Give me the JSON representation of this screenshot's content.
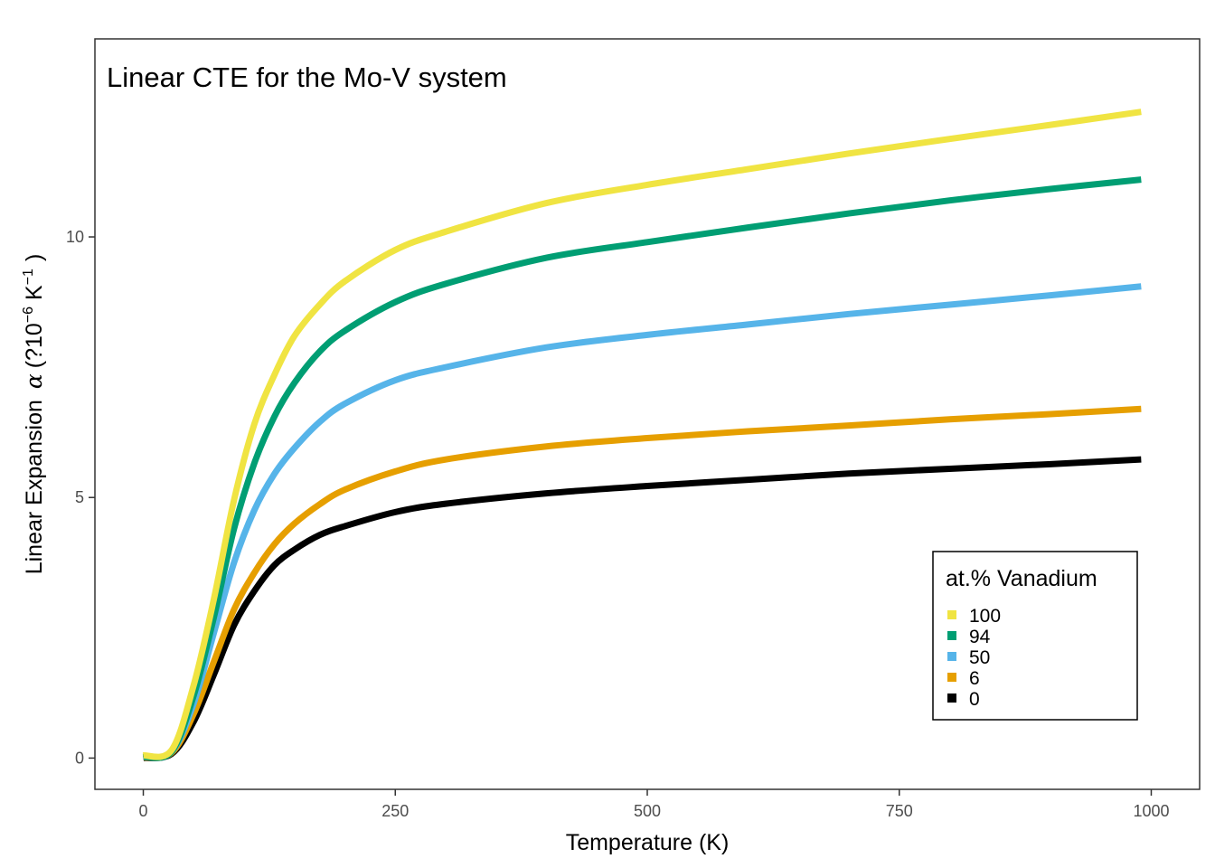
{
  "chart_data": {
    "type": "line",
    "title": "Linear CTE for the Mo-V system",
    "xlabel": "Temperature (K)",
    "ylabel_text": "Linear Expansion",
    "ylabel_symbol": "α",
    "ylabel_unit_open": "(?10",
    "ylabel_unit_exp1": "−6",
    "ylabel_unit_mid": " K",
    "ylabel_unit_exp2": "−1",
    "ylabel_unit_close": ")",
    "xlim": [
      -48,
      1048
    ],
    "ylim": [
      -0.6,
      13.8
    ],
    "xticks": [
      0,
      250,
      500,
      750,
      1000
    ],
    "xtick_labels": [
      "0",
      "250",
      "500",
      "750",
      "1000"
    ],
    "yticks": [
      0,
      5,
      10
    ],
    "ytick_labels": [
      "0",
      "5",
      "10"
    ],
    "grid": false,
    "legend": {
      "title": "at.% Vanadium",
      "placement": "bottom-right",
      "entries": [
        "100",
        "94",
        "50",
        "6",
        "0"
      ]
    },
    "series": [
      {
        "name": "100",
        "color": "#F0E442",
        "x": [
          0,
          28,
          50,
          70,
          90,
          110,
          130,
          150,
          175,
          200,
          250,
          300,
          400,
          500,
          600,
          700,
          800,
          900,
          990
        ],
        "y": [
          0.05,
          0.15,
          1.4,
          3.05,
          4.95,
          6.4,
          7.35,
          8.1,
          8.7,
          9.15,
          9.75,
          10.1,
          10.65,
          11.0,
          11.3,
          11.6,
          11.88,
          12.15,
          12.4
        ]
      },
      {
        "name": "94",
        "color": "#009E73",
        "x": [
          0,
          28,
          50,
          70,
          90,
          110,
          130,
          150,
          175,
          200,
          250,
          300,
          400,
          500,
          600,
          700,
          800,
          900,
          990
        ],
        "y": [
          0.02,
          0.12,
          1.2,
          2.7,
          4.4,
          5.65,
          6.55,
          7.2,
          7.8,
          8.2,
          8.75,
          9.1,
          9.6,
          9.9,
          10.18,
          10.45,
          10.7,
          10.92,
          11.1
        ]
      },
      {
        "name": "50",
        "color": "#56B4E9",
        "x": [
          0,
          28,
          50,
          70,
          90,
          110,
          130,
          150,
          175,
          200,
          250,
          300,
          400,
          500,
          600,
          700,
          800,
          900,
          990
        ],
        "y": [
          0.02,
          0.12,
          1.05,
          2.4,
          3.75,
          4.75,
          5.45,
          5.95,
          6.45,
          6.8,
          7.25,
          7.5,
          7.88,
          8.12,
          8.32,
          8.52,
          8.7,
          8.88,
          9.05
        ]
      },
      {
        "name": "6",
        "color": "#E69F00",
        "x": [
          0,
          28,
          50,
          70,
          90,
          110,
          130,
          150,
          175,
          200,
          250,
          300,
          400,
          500,
          600,
          700,
          800,
          900,
          990
        ],
        "y": [
          0.01,
          0.1,
          0.85,
          1.85,
          2.85,
          3.55,
          4.1,
          4.5,
          4.87,
          5.15,
          5.5,
          5.73,
          5.98,
          6.14,
          6.27,
          6.38,
          6.5,
          6.6,
          6.7
        ]
      },
      {
        "name": "0",
        "color": "#000000",
        "x": [
          0,
          28,
          50,
          70,
          90,
          110,
          130,
          150,
          175,
          200,
          250,
          300,
          400,
          500,
          600,
          700,
          800,
          900,
          990
        ],
        "y": [
          0.0,
          0.08,
          0.7,
          1.6,
          2.55,
          3.2,
          3.7,
          4.0,
          4.28,
          4.45,
          4.72,
          4.88,
          5.08,
          5.22,
          5.34,
          5.46,
          5.55,
          5.64,
          5.73
        ]
      }
    ]
  }
}
